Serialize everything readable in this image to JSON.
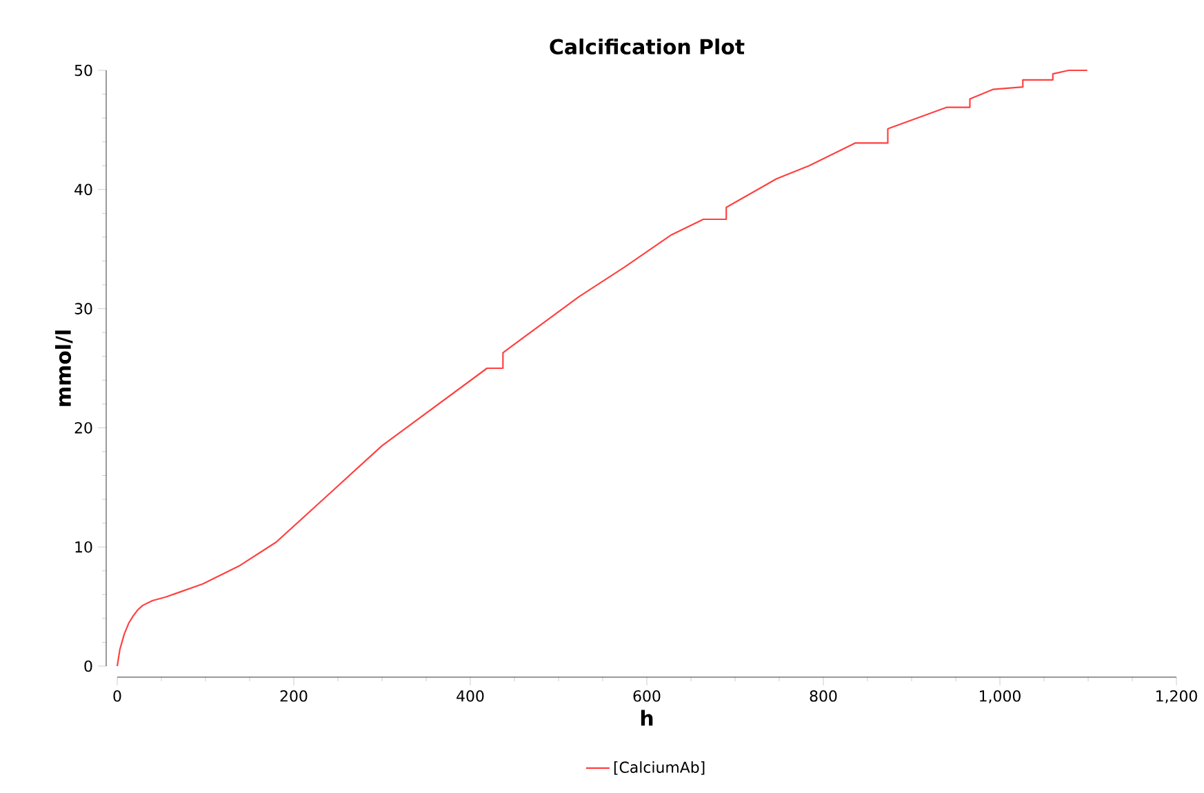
{
  "chart_data": {
    "type": "line",
    "title": "Calcification Plot",
    "xlabel": "h",
    "ylabel": "mmol/l",
    "xlim": [
      0,
      1200
    ],
    "ylim": [
      0,
      50
    ],
    "xticks": [
      0,
      200,
      400,
      600,
      800,
      {
        "value": 1000,
        "label": "1,000"
      },
      {
        "value": 1200,
        "label": "1,200"
      }
    ],
    "yticks": [
      0,
      10,
      20,
      30,
      40,
      50
    ],
    "grid": false,
    "legend": "bottom",
    "marker": "none",
    "line_style": "solid",
    "series": [
      {
        "name": "[CalciumAb]",
        "color": "#ff4040",
        "x": [
          0,
          3,
          8,
          13,
          18,
          23,
          29,
          40,
          55,
          97,
          138,
          180,
          232,
          300,
          419,
          437,
          437,
          523,
          575,
          628,
          664,
          690,
          690,
          747,
          784,
          836,
          873,
          873,
          940,
          966,
          966,
          992,
          1026,
          1026,
          1060,
          1060,
          1078,
          1099
        ],
        "values": [
          0,
          1.4,
          2.7,
          3.6,
          4.2,
          4.7,
          5.1,
          5.5,
          5.8,
          6.9,
          8.4,
          10.4,
          13.9,
          18.5,
          25.0,
          25.0,
          26.3,
          31.0,
          33.5,
          36.2,
          37.5,
          37.5,
          38.5,
          40.9,
          42.0,
          43.9,
          43.9,
          45.1,
          46.9,
          46.9,
          47.6,
          48.4,
          48.6,
          49.2,
          49.2,
          49.7,
          50.0,
          50.0
        ]
      }
    ]
  }
}
